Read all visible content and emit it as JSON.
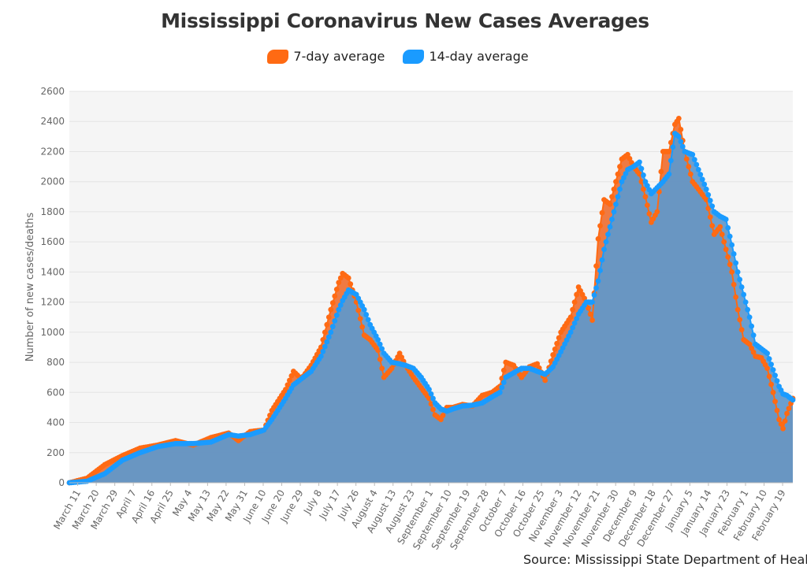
{
  "chart_data": {
    "type": "area",
    "title": "Mississippi Coronavirus New Cases Averages",
    "ylabel": "Number of new cases/deaths",
    "xlabel": "",
    "ylim": [
      0,
      2600
    ],
    "y_ticks": [
      0,
      200,
      400,
      600,
      800,
      1000,
      1200,
      1400,
      1600,
      1800,
      2000,
      2200,
      2400,
      2600
    ],
    "x_ticks": [
      "March 11",
      "March 20",
      "March 29",
      "April 7",
      "April 16",
      "April 25",
      "May 4",
      "May 13",
      "May 22",
      "May 31",
      "June 10",
      "June 20",
      "June 29",
      "July 8",
      "July 17",
      "July 26",
      "August 4",
      "August 13",
      "August 23",
      "September 1",
      "September 10",
      "September 19",
      "September 28",
      "October 7",
      "October 16",
      "October 25",
      "November 3",
      "November 12",
      "November 21",
      "November 30",
      "December 9",
      "December 18",
      "December 27",
      "January 5",
      "January 14",
      "January 23",
      "February 1",
      "February 10",
      "February 19"
    ],
    "grid": true,
    "legend_position": "top-center",
    "series": [
      {
        "name": "7-day average",
        "color": "#ff6a13",
        "anchors": [
          [
            0,
            0
          ],
          [
            9,
            30
          ],
          [
            18,
            120
          ],
          [
            27,
            180
          ],
          [
            36,
            230
          ],
          [
            45,
            250
          ],
          [
            54,
            280
          ],
          [
            63,
            250
          ],
          [
            72,
            300
          ],
          [
            81,
            330
          ],
          [
            86,
            280
          ],
          [
            92,
            340
          ],
          [
            99,
            350
          ],
          [
            103,
            480
          ],
          [
            110,
            620
          ],
          [
            114,
            740
          ],
          [
            118,
            690
          ],
          [
            123,
            780
          ],
          [
            128,
            900
          ],
          [
            133,
            1150
          ],
          [
            137,
            1330
          ],
          [
            139,
            1390
          ],
          [
            142,
            1360
          ],
          [
            146,
            1200
          ],
          [
            150,
            980
          ],
          [
            153,
            950
          ],
          [
            157,
            880
          ],
          [
            160,
            700
          ],
          [
            164,
            760
          ],
          [
            168,
            860
          ],
          [
            171,
            780
          ],
          [
            175,
            700
          ],
          [
            179,
            630
          ],
          [
            183,
            560
          ],
          [
            186,
            450
          ],
          [
            189,
            420
          ],
          [
            192,
            500
          ],
          [
            195,
            500
          ],
          [
            200,
            520
          ],
          [
            205,
            510
          ],
          [
            210,
            580
          ],
          [
            215,
            600
          ],
          [
            219,
            640
          ],
          [
            222,
            800
          ],
          [
            226,
            780
          ],
          [
            230,
            700
          ],
          [
            234,
            770
          ],
          [
            238,
            790
          ],
          [
            242,
            680
          ],
          [
            246,
            850
          ],
          [
            250,
            1000
          ],
          [
            255,
            1100
          ],
          [
            259,
            1300
          ],
          [
            263,
            1200
          ],
          [
            266,
            1080
          ],
          [
            269,
            1620
          ],
          [
            272,
            1880
          ],
          [
            275,
            1850
          ],
          [
            278,
            2000
          ],
          [
            281,
            2150
          ],
          [
            284,
            2180
          ],
          [
            287,
            2100
          ],
          [
            290,
            2050
          ],
          [
            293,
            1900
          ],
          [
            296,
            1730
          ],
          [
            299,
            1800
          ],
          [
            302,
            2200
          ],
          [
            305,
            2200
          ],
          [
            308,
            2380
          ],
          [
            310,
            2420
          ],
          [
            313,
            2200
          ],
          [
            317,
            2000
          ],
          [
            320,
            1950
          ],
          [
            324,
            1880
          ],
          [
            328,
            1650
          ],
          [
            331,
            1700
          ],
          [
            334,
            1550
          ],
          [
            337,
            1400
          ],
          [
            340,
            1150
          ],
          [
            343,
            950
          ],
          [
            346,
            920
          ],
          [
            349,
            840
          ],
          [
            352,
            830
          ],
          [
            355,
            760
          ],
          [
            358,
            600
          ],
          [
            361,
            420
          ],
          [
            363,
            360
          ],
          [
            365,
            460
          ],
          [
            368,
            560
          ]
        ]
      },
      {
        "name": "14-day average",
        "color": "#1a9bff",
        "anchors": [
          [
            0,
            0
          ],
          [
            9,
            10
          ],
          [
            18,
            60
          ],
          [
            27,
            150
          ],
          [
            36,
            200
          ],
          [
            45,
            240
          ],
          [
            54,
            260
          ],
          [
            63,
            260
          ],
          [
            72,
            270
          ],
          [
            81,
            320
          ],
          [
            86,
            310
          ],
          [
            92,
            320
          ],
          [
            99,
            350
          ],
          [
            103,
            420
          ],
          [
            110,
            560
          ],
          [
            114,
            650
          ],
          [
            118,
            690
          ],
          [
            123,
            740
          ],
          [
            128,
            840
          ],
          [
            133,
            1000
          ],
          [
            137,
            1150
          ],
          [
            139,
            1210
          ],
          [
            142,
            1280
          ],
          [
            146,
            1250
          ],
          [
            150,
            1150
          ],
          [
            153,
            1050
          ],
          [
            157,
            950
          ],
          [
            160,
            860
          ],
          [
            164,
            800
          ],
          [
            168,
            790
          ],
          [
            171,
            780
          ],
          [
            175,
            760
          ],
          [
            179,
            700
          ],
          [
            183,
            620
          ],
          [
            186,
            530
          ],
          [
            189,
            490
          ],
          [
            192,
            475
          ],
          [
            195,
            490
          ],
          [
            200,
            510
          ],
          [
            205,
            515
          ],
          [
            210,
            530
          ],
          [
            215,
            570
          ],
          [
            219,
            600
          ],
          [
            222,
            700
          ],
          [
            226,
            730
          ],
          [
            230,
            760
          ],
          [
            234,
            760
          ],
          [
            238,
            740
          ],
          [
            242,
            720
          ],
          [
            246,
            770
          ],
          [
            250,
            870
          ],
          [
            255,
            1000
          ],
          [
            259,
            1120
          ],
          [
            263,
            1200
          ],
          [
            266,
            1200
          ],
          [
            269,
            1340
          ],
          [
            272,
            1550
          ],
          [
            275,
            1700
          ],
          [
            278,
            1850
          ],
          [
            281,
            2000
          ],
          [
            284,
            2080
          ],
          [
            287,
            2100
          ],
          [
            290,
            2130
          ],
          [
            293,
            2000
          ],
          [
            296,
            1920
          ],
          [
            299,
            1960
          ],
          [
            302,
            2000
          ],
          [
            305,
            2050
          ],
          [
            308,
            2320
          ],
          [
            310,
            2300
          ],
          [
            313,
            2200
          ],
          [
            317,
            2180
          ],
          [
            320,
            2080
          ],
          [
            324,
            1950
          ],
          [
            328,
            1800
          ],
          [
            331,
            1770
          ],
          [
            334,
            1750
          ],
          [
            337,
            1580
          ],
          [
            340,
            1400
          ],
          [
            343,
            1250
          ],
          [
            346,
            1100
          ],
          [
            349,
            920
          ],
          [
            352,
            890
          ],
          [
            355,
            860
          ],
          [
            358,
            750
          ],
          [
            361,
            640
          ],
          [
            363,
            590
          ],
          [
            365,
            580
          ],
          [
            368,
            550
          ]
        ]
      }
    ]
  },
  "source": "Source: Mississippi State Department of Health"
}
